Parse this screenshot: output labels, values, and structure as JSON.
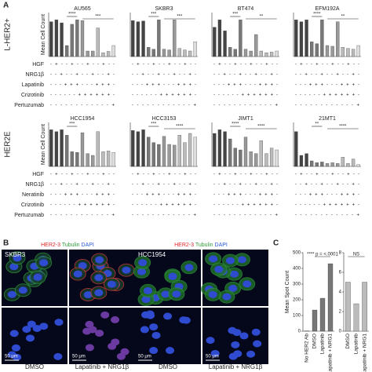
{
  "figure": {
    "panel_a": {
      "label": "A",
      "row_labels": [
        "L-HER2+",
        "HER2E"
      ],
      "tables": [
        {
          "rows": [
            {
              "label": "HGF",
              "signs": "- + - - + - - + - - + - -"
            },
            {
              "label": "NRG1β",
              "signs": "- - + - - + - - + - - + -"
            },
            {
              "label": "Lapatinib",
              "signs": "- - - + + + - - - + + + -"
            },
            {
              "label": "Crizotinib",
              "signs": "- - - - - - + + + + + + -"
            },
            {
              "label": "Pertuzumab",
              "signs": "- - - - - - - - - - - - +"
            }
          ]
        },
        {
          "rows": [
            {
              "label": "HGF",
              "signs": "- + - - + - - + - - + - -"
            },
            {
              "label": "NRG1β",
              "signs": "- - + - - + - - + - - + -"
            },
            {
              "label": "Neratinib",
              "signs": "- - - + + + - - - + + + -"
            },
            {
              "label": "Crizotinib",
              "signs": "- - - - - - + + + + + + -"
            },
            {
              "label": "Pertuzumab",
              "signs": "- - - - - - - - - - - - +"
            }
          ]
        }
      ]
    },
    "panel_b": {
      "label": "B",
      "scale_bar": "50 μm",
      "groups": [
        {
          "stains": [
            "HER2-3",
            "Tubulin",
            "DAPI"
          ],
          "cell_line": "SKBR3",
          "conditions": [
            "DMSO",
            "Lapatinib + NRG1β"
          ]
        },
        {
          "stains": [
            "HER2-3",
            "Tubulin",
            "DAPI"
          ],
          "cell_line": "HCC1954",
          "conditions": [
            "DMSO",
            "Lapatinib + NRG1β"
          ]
        }
      ]
    },
    "panel_c": {
      "label": "C"
    }
  },
  "chart_data": [
    {
      "type": "bar",
      "title": "AU565",
      "ylabel": "Mean Cell Count",
      "values": [
        95,
        100,
        92,
        30,
        88,
        100,
        98,
        15,
        15,
        78,
        10,
        14,
        30
      ],
      "colors": [
        "#444",
        "#444",
        "#444",
        "#777",
        "#777",
        "#777",
        "#999",
        "#999",
        "#999",
        "#bbb",
        "#bbb",
        "#bbb",
        "#ddd"
      ],
      "ylim": [
        0,
        120
      ],
      "annotations": [
        "****",
        "***"
      ]
    },
    {
      "type": "bar",
      "title": "SKBR3",
      "values": [
        98,
        95,
        97,
        25,
        20,
        100,
        20,
        18,
        100,
        22,
        18,
        15,
        40
      ],
      "colors": [
        "#444",
        "#444",
        "#444",
        "#777",
        "#777",
        "#777",
        "#999",
        "#999",
        "#999",
        "#bbb",
        "#bbb",
        "#bbb",
        "#ddd"
      ],
      "ylim": [
        0,
        120
      ],
      "annotations": [
        "***",
        "***"
      ]
    },
    {
      "type": "bar",
      "title": "BT474",
      "values": [
        80,
        100,
        70,
        25,
        20,
        100,
        20,
        15,
        60,
        15,
        10,
        12,
        15
      ],
      "colors": [
        "#444",
        "#444",
        "#444",
        "#777",
        "#777",
        "#777",
        "#999",
        "#999",
        "#999",
        "#bbb",
        "#bbb",
        "#bbb",
        "#ddd"
      ],
      "ylim": [
        0,
        120
      ],
      "annotations": [
        "***",
        "**"
      ]
    },
    {
      "type": "bar",
      "title": "EFM192A",
      "values": [
        100,
        95,
        100,
        40,
        35,
        100,
        30,
        28,
        95,
        25,
        22,
        20,
        30
      ],
      "colors": [
        "#444",
        "#444",
        "#444",
        "#777",
        "#777",
        "#777",
        "#999",
        "#999",
        "#999",
        "#bbb",
        "#bbb",
        "#bbb",
        "#ddd"
      ],
      "ylim": [
        0,
        120
      ],
      "annotations": [
        "****",
        "**"
      ]
    },
    {
      "type": "bar",
      "title": "HCC1954",
      "ylabel": "Mean Cell Count",
      "values": [
        100,
        95,
        100,
        85,
        40,
        38,
        92,
        35,
        30,
        95,
        40,
        42,
        38
      ],
      "colors": [
        "#444",
        "#444",
        "#444",
        "#777",
        "#777",
        "#777",
        "#999",
        "#999",
        "#999",
        "#bbb",
        "#bbb",
        "#bbb",
        "#ddd"
      ],
      "ylim": [
        0,
        120
      ],
      "annotations": [
        "***"
      ]
    },
    {
      "type": "bar",
      "title": "HCC3153",
      "values": [
        98,
        95,
        100,
        80,
        65,
        60,
        82,
        60,
        58,
        85,
        65,
        90,
        80
      ],
      "colors": [
        "#444",
        "#444",
        "#444",
        "#777",
        "#777",
        "#777",
        "#999",
        "#999",
        "#999",
        "#bbb",
        "#bbb",
        "#bbb",
        "#ddd"
      ],
      "ylim": [
        0,
        120
      ],
      "annotations": [
        "***",
        "****"
      ]
    },
    {
      "type": "bar",
      "title": "JIMT1",
      "values": [
        90,
        100,
        95,
        75,
        50,
        45,
        80,
        40,
        35,
        70,
        35,
        50,
        45
      ],
      "colors": [
        "#444",
        "#444",
        "#444",
        "#777",
        "#777",
        "#777",
        "#999",
        "#999",
        "#999",
        "#bbb",
        "#bbb",
        "#bbb",
        "#ddd"
      ],
      "ylim": [
        0,
        120
      ],
      "annotations": [
        "****",
        "****"
      ]
    },
    {
      "type": "bar",
      "title": "21MT1",
      "values": [
        95,
        30,
        35,
        15,
        10,
        12,
        8,
        10,
        8,
        25,
        8,
        20,
        5
      ],
      "colors": [
        "#444",
        "#444",
        "#444",
        "#777",
        "#777",
        "#777",
        "#999",
        "#999",
        "#999",
        "#bbb",
        "#bbb",
        "#bbb",
        "#ddd"
      ],
      "ylim": [
        0,
        120
      ],
      "annotations": [
        "**",
        "****"
      ]
    },
    {
      "type": "bar",
      "ylabel": "Mean Spot Count",
      "categories": [
        "No HER2 Ab",
        "DMSO",
        "Lapatinib",
        "Lapatinib + NRG1"
      ],
      "values": [
        2,
        135,
        210,
        430
      ],
      "colors": [
        "#777",
        "#777",
        "#777",
        "#777"
      ],
      "ylim": [
        0,
        500
      ],
      "yticks": [
        0,
        100,
        200,
        300,
        400,
        500
      ],
      "annotations": [
        "**** p = <.0001"
      ]
    },
    {
      "type": "bar",
      "categories": [
        "DMSO",
        "Lapatinib",
        "Lapatinib + NRG1"
      ],
      "values": [
        5,
        2.8,
        5
      ],
      "colors": [
        "#bbb",
        "#bbb",
        "#bbb"
      ],
      "ylim": [
        0,
        8
      ],
      "yticks": [
        0,
        2,
        4,
        6,
        8
      ],
      "annotations": [
        "NS"
      ]
    }
  ]
}
